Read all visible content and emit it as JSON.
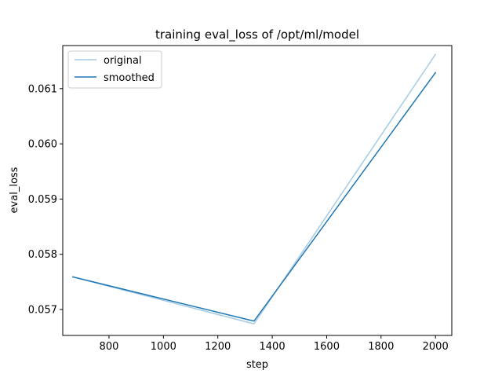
{
  "chart_data": {
    "type": "line",
    "title": "training eval_loss of /opt/ml/model",
    "xlabel": "step",
    "ylabel": "eval_loss",
    "xlim": [
      630,
      2060
    ],
    "ylim": [
      0.05653,
      0.06178
    ],
    "x_ticks": [
      800,
      1000,
      1200,
      1400,
      1600,
      1800,
      2000
    ],
    "x_tick_labels": [
      "800",
      "1000",
      "1200",
      "1400",
      "1600",
      "1800",
      "2000"
    ],
    "y_ticks": [
      0.057,
      0.058,
      0.059,
      0.06,
      0.061
    ],
    "y_tick_labels": [
      "0.057",
      "0.058",
      "0.059",
      "0.060",
      "0.061"
    ],
    "grid": false,
    "legend_position": "upper-left",
    "series": [
      {
        "name": "original",
        "color": "#a6cbe3",
        "x": [
          667,
          1333,
          2000
        ],
        "y": [
          0.05759,
          0.05674,
          0.06162
        ]
      },
      {
        "name": "smoothed",
        "color": "#1f77b4",
        "x": [
          667,
          1333,
          2000
        ],
        "y": [
          0.05759,
          0.05679,
          0.06129
        ]
      }
    ]
  }
}
